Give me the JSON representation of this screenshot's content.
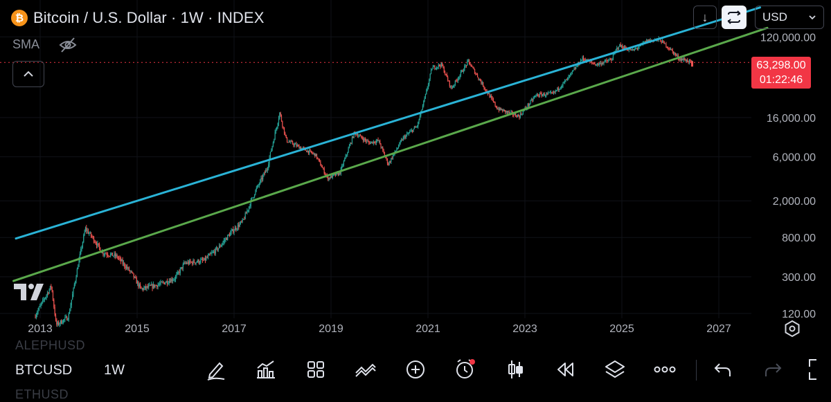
{
  "header": {
    "title": "Bitcoin / U.S. Dollar · 1W · INDEX",
    "indicator": "SMA",
    "currency": "USD",
    "down_arrow": "↓"
  },
  "price_tag": {
    "price": "63,298.00",
    "countdown": "01:22:46"
  },
  "bottom_bar": {
    "symbol": "BTCUSD",
    "timeframe": "1W",
    "ghost_above": "ALEPHUSD",
    "ghost_below": "ETHUSD",
    "tools": [
      "pencil-icon",
      "indicators-icon",
      "grid-icon",
      "pattern-icon",
      "add-icon",
      "alert-icon",
      "candles-icon",
      "replay-icon",
      "layers-icon",
      "more-icon",
      "undo-icon",
      "redo-icon",
      "fullscreen-icon"
    ]
  },
  "colors": {
    "up": "#26a69a",
    "down": "#ef5350",
    "upper_channel": "#2ab3d6",
    "lower_channel": "#5aa84b",
    "price_tag": "#f23645",
    "btc": "#f7931a"
  },
  "chart_data": {
    "type": "candlestick",
    "scale": "log",
    "x_ticks": [
      "2013",
      "2015",
      "2017",
      "2019",
      "2021",
      "2023",
      "2025",
      "2027"
    ],
    "y_ticks": [
      {
        "value": 120000,
        "label": "120,000.00"
      },
      {
        "value": 16000,
        "label": "16,000.00"
      },
      {
        "value": 6000,
        "label": "6,000.00"
      },
      {
        "value": 2000,
        "label": "2,000.00"
      },
      {
        "value": 800,
        "label": "800.00"
      },
      {
        "value": 300,
        "label": "300.00"
      },
      {
        "value": 120,
        "label": "120.00"
      }
    ],
    "last_price": 63298,
    "price_path": [
      [
        2012.9,
        110
      ],
      [
        2013.25,
        240
      ],
      [
        2013.35,
        90
      ],
      [
        2013.6,
        110
      ],
      [
        2013.8,
        400
      ],
      [
        2013.95,
        1000
      ],
      [
        2014.1,
        800
      ],
      [
        2014.3,
        550
      ],
      [
        2014.6,
        500
      ],
      [
        2014.9,
        330
      ],
      [
        2015.1,
        220
      ],
      [
        2015.5,
        250
      ],
      [
        2015.8,
        290
      ],
      [
        2016.0,
        420
      ],
      [
        2016.4,
        450
      ],
      [
        2016.7,
        620
      ],
      [
        2016.95,
        900
      ],
      [
        2017.2,
        1200
      ],
      [
        2017.45,
        2500
      ],
      [
        2017.7,
        4500
      ],
      [
        2017.96,
        18000
      ],
      [
        2018.1,
        9000
      ],
      [
        2018.4,
        7500
      ],
      [
        2018.7,
        6300
      ],
      [
        2018.95,
        3500
      ],
      [
        2019.2,
        4000
      ],
      [
        2019.5,
        11000
      ],
      [
        2019.8,
        8500
      ],
      [
        2020.0,
        9000
      ],
      [
        2020.2,
        5000
      ],
      [
        2020.5,
        9500
      ],
      [
        2020.8,
        13000
      ],
      [
        2020.97,
        28000
      ],
      [
        2021.1,
        55000
      ],
      [
        2021.3,
        60000
      ],
      [
        2021.5,
        33000
      ],
      [
        2021.85,
        65000
      ],
      [
        2022.1,
        40000
      ],
      [
        2022.45,
        20000
      ],
      [
        2022.9,
        16500
      ],
      [
        2023.25,
        28000
      ],
      [
        2023.6,
        29000
      ],
      [
        2023.9,
        42000
      ],
      [
        2024.2,
        70000
      ],
      [
        2024.5,
        60000
      ],
      [
        2024.8,
        68000
      ],
      [
        2024.95,
        97000
      ],
      [
        2025.25,
        85000
      ],
      [
        2025.55,
        110000
      ],
      [
        2025.8,
        112000
      ],
      [
        2026.0,
        90000
      ],
      [
        2026.2,
        70000
      ],
      [
        2026.35,
        67000
      ],
      [
        2026.45,
        63298
      ]
    ],
    "channels": [
      {
        "name": "upper",
        "points": [
          [
            2012.5,
            780
          ],
          [
            2027.85,
            250000
          ]
        ]
      },
      {
        "name": "lower",
        "points": [
          [
            2012.45,
            270
          ],
          [
            2028.0,
            150000
          ]
        ]
      }
    ]
  }
}
